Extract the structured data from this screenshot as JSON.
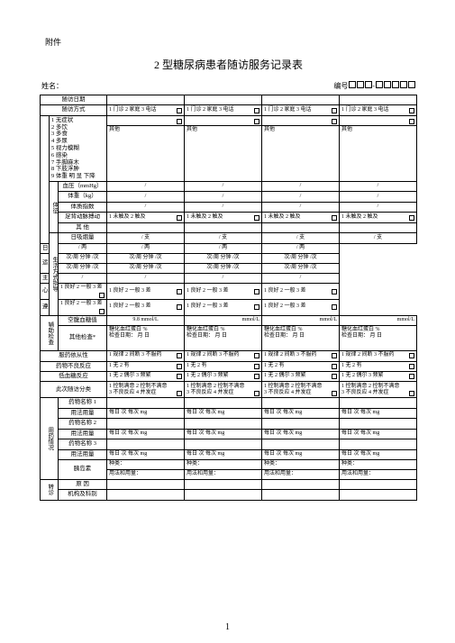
{
  "header": {
    "attachment": "附件",
    "title": "2 型糖尿病患者随访服务记录表",
    "name_label": "姓名：",
    "id_label": "编号"
  },
  "rows": {
    "visit_date": "随访日期",
    "visit_mode": "随访方式",
    "visit_mode_opt": "1 门诊 2 家庭 3 电话",
    "symptom_header": "症状",
    "symptom_list": "1 无症状\n2 多饮\n3 多食\n4 多尿\n5 视力模糊\n6 感染\n7 手脚麻木\n8 下肢浮肿\n9 体重 明 显 下降",
    "other": "其他",
    "signs": "体征",
    "bp": "血压（mmHg）",
    "weight": "体重（kg）",
    "bmi": "体质指数",
    "pulse": "足背动脉搏动",
    "pulse_opt": "1 未触及 2 触及",
    "other2": "其 他",
    "lifestyle": "生活方式指导",
    "smoke": "日吸烟量",
    "smoke_unit": "支",
    "drink": "日饮酒量",
    "drink_unit": "两",
    "sport": "运  动",
    "sport_unit1": "次/周",
    "sport_unit2": "分钟 /次",
    "staple": "主食（克/天）",
    "psych": "心理调整",
    "psych_opt": "1 良好 2 一般  3 差",
    "doctor": "遵医行为",
    "doctor_opt": "1 良好 2 一般  3 差",
    "aux": "辅助检查",
    "fbg": "空腹血糖值",
    "fbg_val": "9.8",
    "fbg_unit": "mmol/L",
    "fbg_unit2": "mmol/L",
    "other_check": "其他检查*",
    "hba1c": "糖化血红蛋白",
    "hba1c_unit": "%",
    "check_date": "检查日期：",
    "date_fmt": "月    日",
    "compliance": "服药依从性",
    "compliance_opt": "1 规律 2 间断 3 不服药",
    "adverse": "药物不良反应",
    "adverse_opt": "1 无 2  有",
    "hypo": "低血糖反应",
    "hypo_opt": "1 无 2  偶尔  3 频繁",
    "classify": "此次随访分类",
    "classify_opt": "1 控制满意 2 控制不满意\n3 不良反应 4 并发症",
    "drug": "用药情况",
    "drug1": "药物名称 1",
    "drug2": "药物名称 2",
    "drug3": "药物名称 3",
    "usage": "用法用量",
    "usage_fmt": "每日    次",
    "usage_fmt2": "每次   mg",
    "insulin": "胰岛素",
    "insulin_type": "种类：",
    "insulin_usage": "用法和用量：",
    "referral": "转诊",
    "reason": "原  因",
    "org": "机构及科别"
  },
  "page": "1"
}
